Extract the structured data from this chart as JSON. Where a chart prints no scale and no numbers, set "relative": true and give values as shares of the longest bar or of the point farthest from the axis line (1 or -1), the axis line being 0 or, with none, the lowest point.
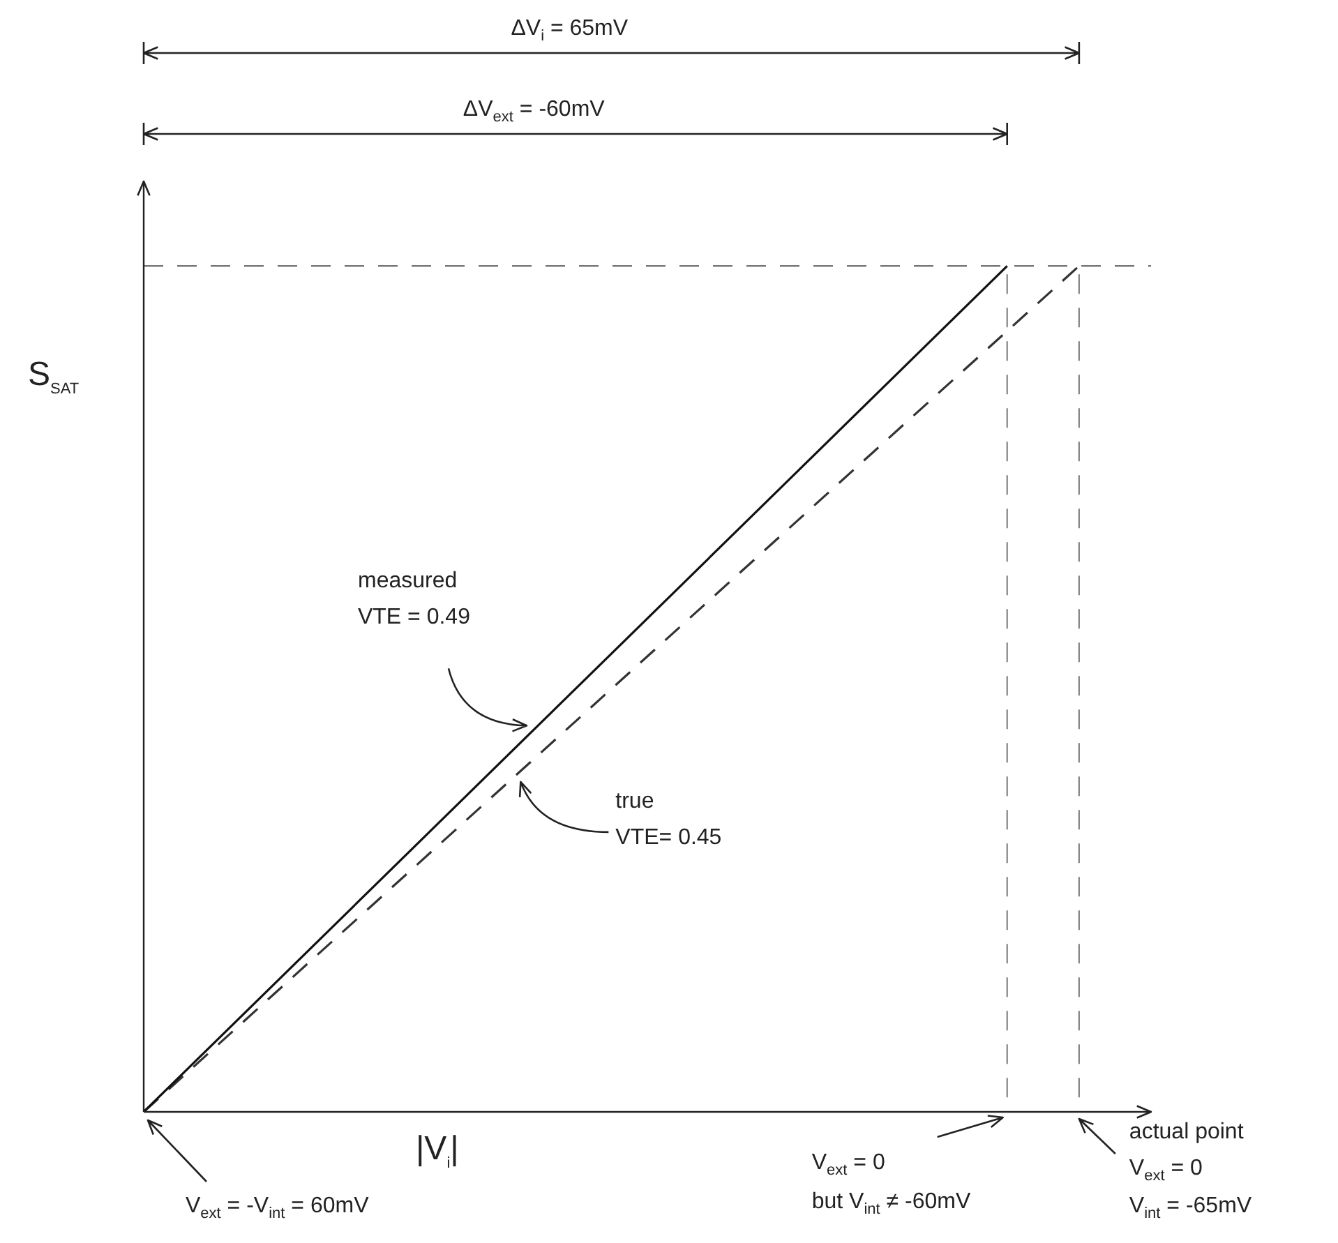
{
  "chart_data": {
    "type": "line",
    "relative": true,
    "xlabel": "|V$_{i}$|",
    "ylabel": "S$_{SAT}$",
    "categories": [
      null,
      null,
      null,
      null,
      null,
      null,
      null,
      null,
      null,
      null,
      null,
      null,
      null,
      null,
      null
    ],
    "marker": "none",
    "series": [
      {
        "color": "#111111",
        "line_style": "solid",
        "values": [
          0,
          null,
          null,
          null,
          null,
          null,
          null,
          null,
          null,
          null,
          null,
          null,
          1,
          null,
          null
        ]
      },
      {
        "color": "#333333",
        "line_style": "dashed",
        "values": [
          0,
          null,
          null,
          null,
          null,
          null,
          null,
          null,
          null,
          null,
          null,
          null,
          null,
          1,
          null
        ]
      }
    ],
    "ref_lines": [
      {
        "axis": "y",
        "value": 1,
        "color": "#777777",
        "line_style": "dashed"
      }
    ],
    "annotations": [
      "ΔV$_{i}$ = 65mV",
      "ΔV$_{ext}$ = -60mV",
      "measured\nVTE = 0.49",
      "true\nVTE= 0.45",
      "V$_{ext}$ = -V$_{int}$ = 60mV",
      "V$_{ext}$ = 0\nbut V$_{int}$ ≠ -60mV",
      "actual point\nV$_{ext}$ = 0\nV$_{int}$ = -65mV"
    ]
  }
}
